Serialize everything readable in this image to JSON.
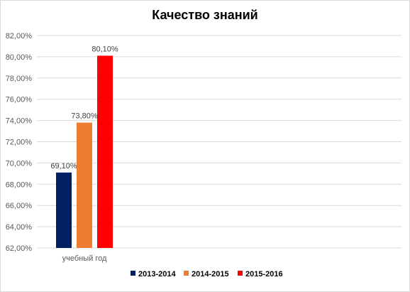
{
  "chart_data": {
    "type": "bar",
    "title": "Качество знаний",
    "categories": [
      "учебный год"
    ],
    "series": [
      {
        "name": "2013-2014",
        "values": [
          69.1
        ],
        "label": "69,10%",
        "color": "#002060"
      },
      {
        "name": "2014-2015",
        "values": [
          73.8
        ],
        "label": "73,80%",
        "color": "#ED7D31"
      },
      {
        "name": "2015-2016",
        "values": [
          80.1
        ],
        "label": "80,10%",
        "color": "#FF0000"
      }
    ],
    "ylim": [
      62,
      82
    ],
    "yticks": [
      "62,00%",
      "64,00%",
      "66,00%",
      "68,00%",
      "70,00%",
      "72,00%",
      "74,00%",
      "76,00%",
      "78,00%",
      "80,00%",
      "82,00%"
    ],
    "xlabel": "",
    "ylabel": "",
    "grid": true,
    "legend_position": "bottom"
  }
}
